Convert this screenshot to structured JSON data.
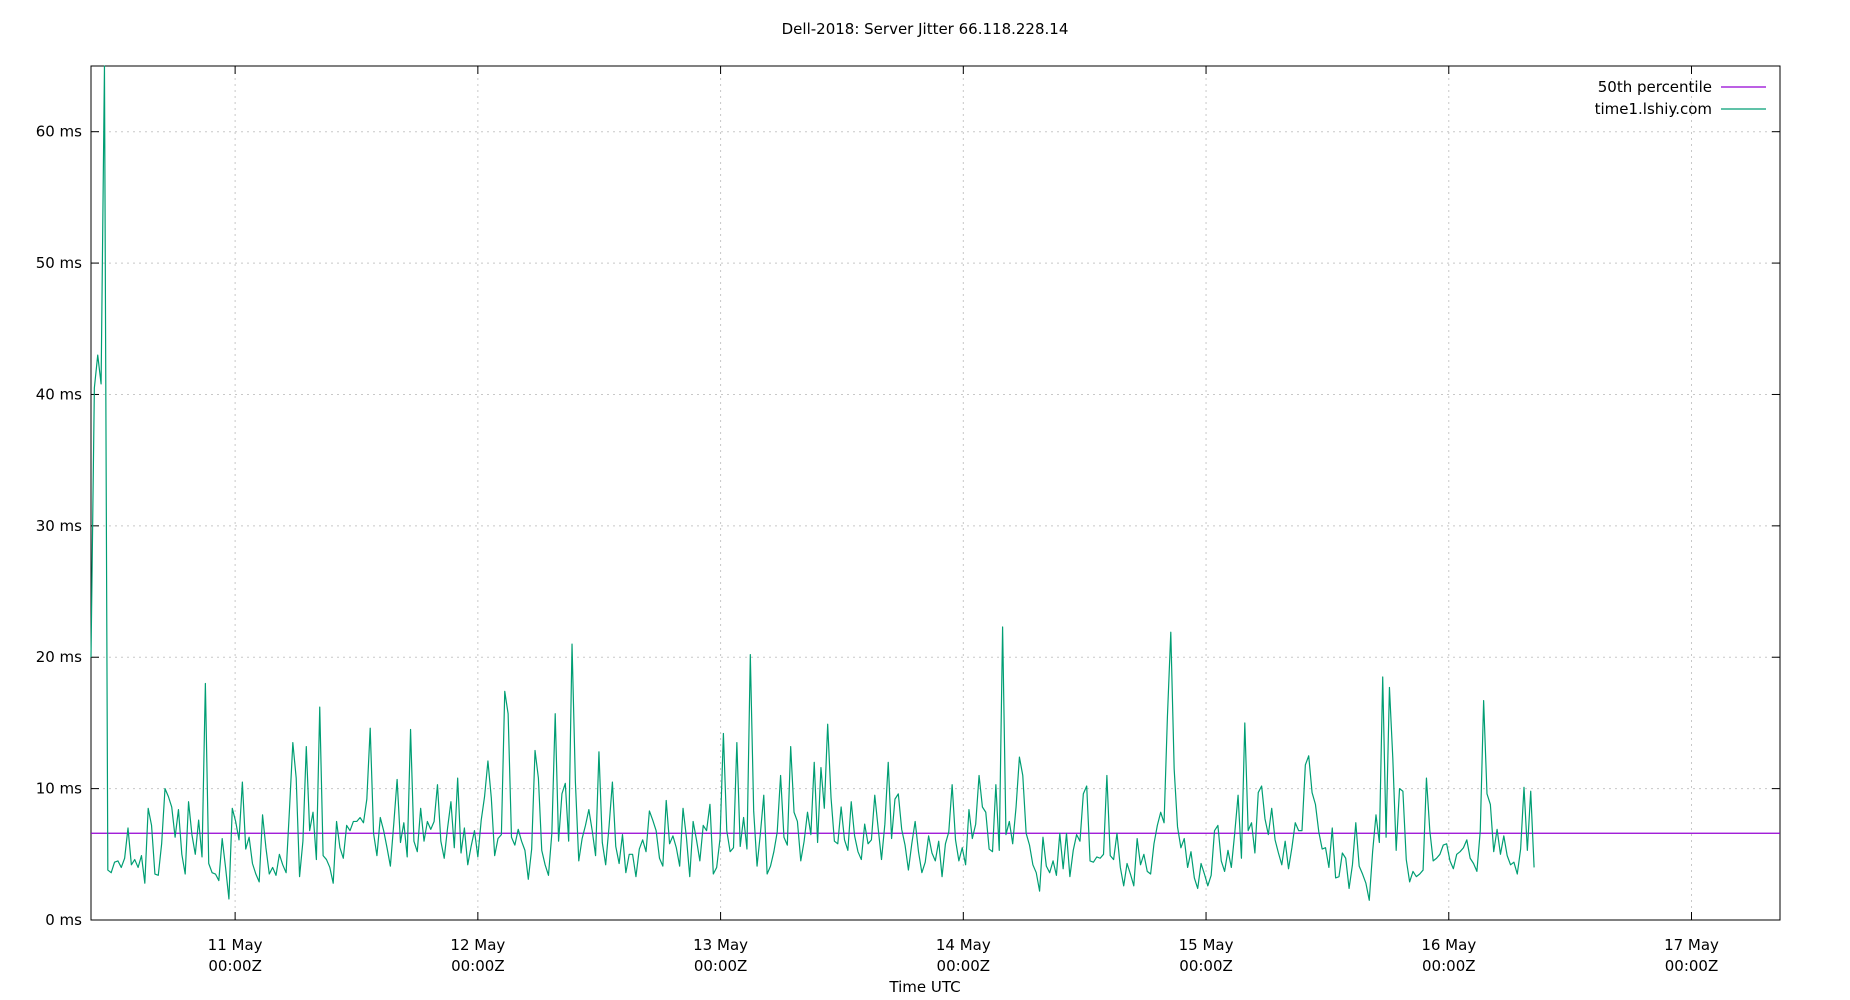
{
  "chart_data": {
    "type": "line",
    "title": "Dell-2018: Server Jitter 66.118.228.14",
    "xlabel": "Time UTC",
    "ylabel": "",
    "ylim": [
      0,
      65
    ],
    "xlim": [
      "2023-05-10T09:45Z",
      "2023-05-17T08:45Z"
    ],
    "y_unit": "ms",
    "grid": true,
    "legend_position": "top-right",
    "x_ticks": [
      {
        "date": "11 May",
        "time": "00:00Z"
      },
      {
        "date": "12 May",
        "time": "00:00Z"
      },
      {
        "date": "13 May",
        "time": "00:00Z"
      },
      {
        "date": "14 May",
        "time": "00:00Z"
      },
      {
        "date": "15 May",
        "time": "00:00Z"
      },
      {
        "date": "16 May",
        "time": "00:00Z"
      },
      {
        "date": "17 May",
        "time": "00:00Z"
      }
    ],
    "y_ticks": [
      "0 ms",
      "10 ms",
      "20 ms",
      "30 ms",
      "40 ms",
      "50 ms",
      "60 ms"
    ],
    "y_tick_values": [
      0,
      10,
      20,
      30,
      40,
      50,
      60
    ],
    "x_start_hour": 0,
    "x_step_hours": 0.3326,
    "series": [
      {
        "name": "50th percentile",
        "color": "#9400d3",
        "constant": 6.6
      },
      {
        "name": "time1.lshiy.com",
        "color": "#009e73",
        "values": [
          20.0,
          40.5,
          43.0,
          40.8,
          65.0,
          3.8,
          3.6,
          4.4,
          4.5,
          4.0,
          4.7,
          7.0,
          4.2,
          4.6,
          4.0,
          4.9,
          2.8,
          8.5,
          7.2,
          3.5,
          3.4,
          5.8,
          10.0,
          9.4,
          8.6,
          6.3,
          8.4,
          5.0,
          3.5,
          9.0,
          6.5,
          5.0,
          7.6,
          4.8,
          18.0,
          4.3,
          3.6,
          3.5,
          3.0,
          6.2,
          4.0,
          1.6,
          8.5,
          7.5,
          6.1,
          10.5,
          5.4,
          6.3,
          4.3,
          3.5,
          2.9,
          8.0,
          5.5,
          3.5,
          4.0,
          3.4,
          5.0,
          4.2,
          3.6,
          8.4,
          13.5,
          10.8,
          3.3,
          6.0,
          13.2,
          6.8,
          8.2,
          4.6,
          16.2,
          4.9,
          4.6,
          4.0,
          2.8,
          7.5,
          5.5,
          4.7,
          7.2,
          6.8,
          7.5,
          7.5,
          7.8,
          7.4,
          9.2,
          14.6,
          6.6,
          4.9,
          7.8,
          6.8,
          5.5,
          4.1,
          7.3,
          10.7,
          5.9,
          7.4,
          4.8,
          14.5,
          6.0,
          5.2,
          8.5,
          6.0,
          7.5,
          6.9,
          7.5,
          10.3,
          6.0,
          4.7,
          7.0,
          9.0,
          5.5,
          10.8,
          5.1,
          7.0,
          4.2,
          5.6,
          6.8,
          4.8,
          7.6,
          9.4,
          12.1,
          9.3,
          4.9,
          6.2,
          6.5,
          17.4,
          15.7,
          6.3,
          5.7,
          6.9,
          6.0,
          5.3,
          3.1,
          5.4,
          12.9,
          10.8,
          5.3,
          4.2,
          3.4,
          6.6,
          15.7,
          6.0,
          9.6,
          10.4,
          6.0,
          21.0,
          10.5,
          4.5,
          6.2,
          7.2,
          8.4,
          6.8,
          4.9,
          12.8,
          5.9,
          4.2,
          7.1,
          10.5,
          5.6,
          4.3,
          6.5,
          3.6,
          5.0,
          5.0,
          3.3,
          5.4,
          6.1,
          5.2,
          8.3,
          7.6,
          6.8,
          4.7,
          4.1,
          9.1,
          5.8,
          6.4,
          5.5,
          4.1,
          8.5,
          6.3,
          3.3,
          7.5,
          6.1,
          4.5,
          7.2,
          6.8,
          8.8,
          3.5,
          4.0,
          6.2,
          14.2,
          6.8,
          5.2,
          5.5,
          13.5,
          5.6,
          7.8,
          5.4,
          20.2,
          8.3,
          4.1,
          6.6,
          9.5,
          3.5,
          4.1,
          5.2,
          6.7,
          11.0,
          6.3,
          5.7,
          13.2,
          8.2,
          7.5,
          4.5,
          6.0,
          8.2,
          6.5,
          12.0,
          5.9,
          11.6,
          8.5,
          14.9,
          9.3,
          6.0,
          5.8,
          8.6,
          6.1,
          5.3,
          9.0,
          6.4,
          5.2,
          4.6,
          7.3,
          5.8,
          6.1,
          9.5,
          7.0,
          4.6,
          7.3,
          12.0,
          6.2,
          9.2,
          9.6,
          6.9,
          5.7,
          3.8,
          5.8,
          7.5,
          5.2,
          3.6,
          4.4,
          6.4,
          5.1,
          4.5,
          6.0,
          3.3,
          5.8,
          6.7,
          10.3,
          6.1,
          4.5,
          5.5,
          4.2,
          8.4,
          6.2,
          7.3,
          11.0,
          8.6,
          8.2,
          5.4,
          5.2,
          10.3,
          5.3,
          22.3,
          6.5,
          7.5,
          5.8,
          8.6,
          12.4,
          11.0,
          6.6,
          5.7,
          4.2,
          3.6,
          2.2,
          6.3,
          4.1,
          3.6,
          4.5,
          3.4,
          6.6,
          3.9,
          6.6,
          3.3,
          5.3,
          6.5,
          6.0,
          9.6,
          10.2,
          4.5,
          4.4,
          4.8,
          4.7,
          5.0,
          11.0,
          4.9,
          4.6,
          6.6,
          4.0,
          2.6,
          4.3,
          3.5,
          2.6,
          6.2,
          4.2,
          5.0,
          3.7,
          3.5,
          5.8,
          7.2,
          8.2,
          7.4,
          15.5,
          21.9,
          11.5,
          7.1,
          5.5,
          6.2,
          4.0,
          5.2,
          3.2,
          2.4,
          4.3,
          3.5,
          2.6,
          3.4,
          6.8,
          7.2,
          4.5,
          3.7,
          5.3,
          4.0,
          6.6,
          9.5,
          4.7,
          15.0,
          6.8,
          7.4,
          5.1,
          9.7,
          10.2,
          7.7,
          6.5,
          8.5,
          6.1,
          5.1,
          4.2,
          6.0,
          3.9,
          5.5,
          7.4,
          6.8,
          6.8,
          11.8,
          12.5,
          9.7,
          8.8,
          6.7,
          5.4,
          5.5,
          4.0,
          7.0,
          3.2,
          3.3,
          5.1,
          4.7,
          2.4,
          4.2,
          7.4,
          4.1,
          3.5,
          2.8,
          1.5,
          5.2,
          8.0,
          5.9,
          18.5,
          6.3,
          17.7,
          12.3,
          5.3,
          10.0,
          9.8,
          4.6,
          2.9,
          3.7,
          3.3,
          3.5,
          3.8,
          10.8,
          6.8,
          4.5,
          4.7,
          5.0,
          5.7,
          5.8,
          4.5,
          3.9,
          5.0,
          5.2,
          5.5,
          6.1,
          4.7,
          4.3,
          3.7,
          6.8,
          16.7,
          9.6,
          8.8,
          5.2,
          6.9,
          5.0,
          6.4,
          4.9,
          4.2,
          4.4,
          3.5,
          5.4,
          10.1,
          5.3,
          9.8,
          4.0
        ]
      }
    ]
  }
}
